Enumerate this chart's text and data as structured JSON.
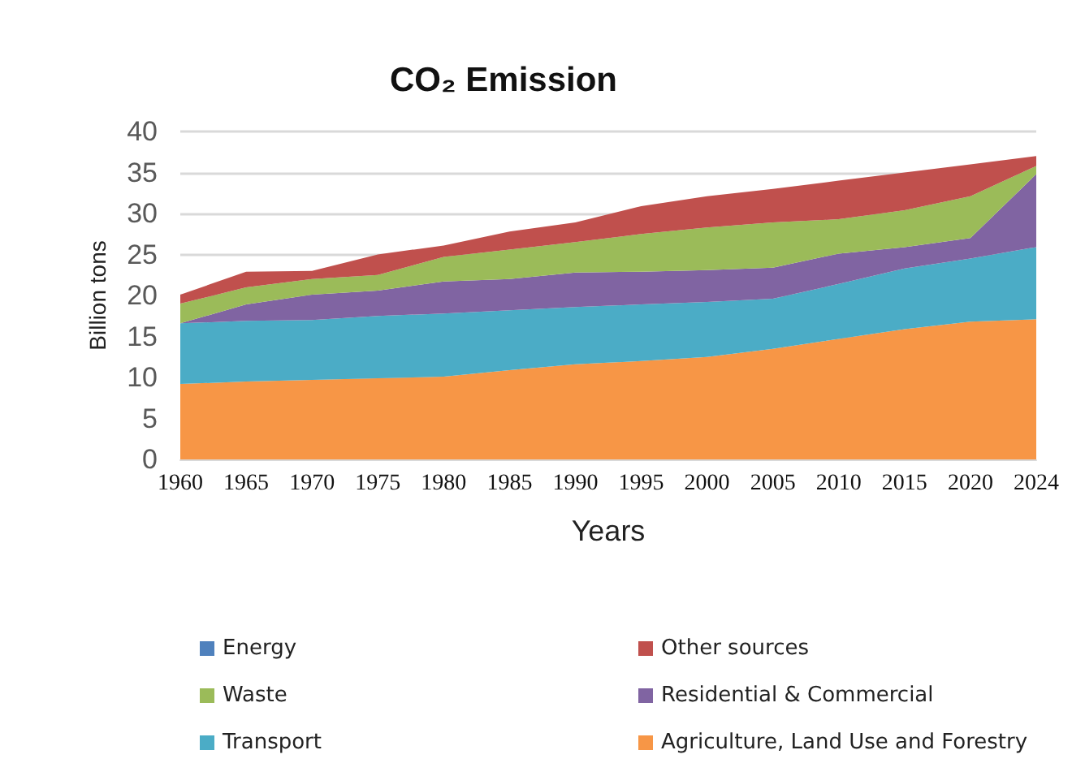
{
  "chart_data": {
    "type": "area",
    "title": "CO₂ Emission",
    "xlabel": "Years",
    "ylabel": "Billion tons",
    "stacked": true,
    "categories": [
      "1960",
      "1965",
      "1970",
      "1975",
      "1980",
      "1985",
      "1990",
      "1995",
      "2000",
      "2005",
      "2010",
      "2015",
      "2020",
      "2024"
    ],
    "series": [
      {
        "name": "Agriculture, Land Use and Forestry",
        "color": "#f79646",
        "values": [
          9.2,
          9.5,
          9.7,
          9.9,
          10.1,
          10.9,
          11.6,
          12.0,
          12.5,
          13.5,
          14.7,
          15.9,
          16.8,
          17.1
        ]
      },
      {
        "name": "Transport",
        "color": "#4bacc6",
        "values": [
          7.4,
          7.4,
          7.3,
          7.6,
          7.7,
          7.3,
          7.0,
          6.9,
          6.7,
          6.1,
          6.7,
          7.4,
          7.7,
          8.8
        ]
      },
      {
        "name": "Residential & Commercial",
        "color": "#8064a2",
        "values": [
          0,
          2.0,
          3.1,
          3.1,
          3.9,
          3.8,
          4.2,
          4.0,
          3.9,
          3.8,
          3.7,
          2.6,
          2.5,
          8.9
        ]
      },
      {
        "name": "Waste",
        "color": "#9bbb59",
        "values": [
          2.4,
          2.1,
          1.9,
          1.9,
          3.0,
          3.6,
          3.7,
          4.6,
          5.2,
          5.5,
          4.2,
          4.5,
          5.1,
          1.0
        ]
      },
      {
        "name": "Other sources",
        "color": "#c0504d",
        "values": [
          1.1,
          1.9,
          1.0,
          2.5,
          1.4,
          2.2,
          2.4,
          3.4,
          3.8,
          4.1,
          4.7,
          4.6,
          3.9,
          1.2
        ]
      },
      {
        "name": "Energy",
        "color": "#4f81bd",
        "values": [
          null,
          null,
          null,
          null,
          null,
          null,
          null,
          null,
          null,
          null,
          null,
          null,
          null,
          null
        ]
      }
    ],
    "ylim": [
      0,
      40
    ],
    "yticks": [
      0,
      5,
      10,
      15,
      20,
      25,
      30,
      35,
      40
    ],
    "grid": "y",
    "legend": "bottom"
  }
}
